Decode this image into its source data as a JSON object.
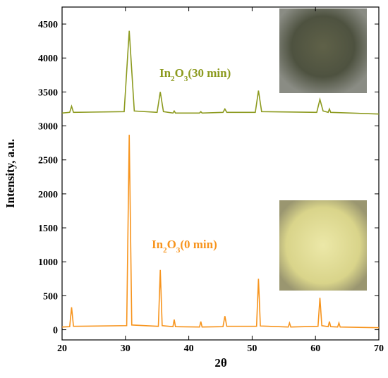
{
  "chart_data": {
    "type": "line",
    "xlabel": "2θ",
    "ylabel": "Intensity, a.u.",
    "xlim": [
      20,
      70
    ],
    "xticks": [
      20,
      30,
      40,
      50,
      60,
      70
    ],
    "ylim": [
      -150,
      4750
    ],
    "yticks": [
      0,
      500,
      1000,
      1500,
      2000,
      2500,
      3000,
      3500,
      4000,
      4500
    ],
    "series": [
      {
        "color": "#f7941d",
        "x": [
          20,
          21.2,
          21.5,
          21.8,
          30.2,
          30.6,
          31.0,
          35.2,
          35.5,
          35.8,
          37.5,
          37.7,
          37.9,
          41.7,
          41.9,
          42.1,
          45.4,
          45.7,
          46.0,
          50.7,
          51.0,
          51.3,
          55.7,
          55.9,
          56.1,
          60.4,
          60.7,
          61.0,
          62.0,
          62.2,
          62.4,
          63.5,
          63.7,
          63.9,
          70
        ],
        "values": [
          40,
          45,
          330,
          50,
          60,
          2870,
          70,
          50,
          880,
          60,
          45,
          150,
          45,
          40,
          120,
          40,
          45,
          200,
          50,
          50,
          750,
          55,
          40,
          100,
          40,
          50,
          470,
          60,
          45,
          120,
          45,
          40,
          100,
          40,
          30
        ],
        "label_parts": [
          "In",
          "2",
          "O",
          "3",
          "(0 min)"
        ]
      },
      {
        "color": "#8c9a1e",
        "x": [
          20,
          21.2,
          21.5,
          21.8,
          29.8,
          30.6,
          31.4,
          35.0,
          35.5,
          36.0,
          37.5,
          37.7,
          37.9,
          41.7,
          41.9,
          42.1,
          45.4,
          45.7,
          46.0,
          50.5,
          51.0,
          51.5,
          60.2,
          60.7,
          61.2,
          62.0,
          62.2,
          62.4,
          70
        ],
        "values": [
          3190,
          3200,
          3290,
          3200,
          3210,
          4400,
          3220,
          3200,
          3500,
          3210,
          3190,
          3220,
          3190,
          3190,
          3210,
          3190,
          3200,
          3250,
          3200,
          3200,
          3520,
          3210,
          3200,
          3390,
          3220,
          3200,
          3250,
          3200,
          3175
        ],
        "label_parts": [
          "In",
          "2",
          "O",
          "3",
          "(30 min)"
        ]
      }
    ]
  }
}
